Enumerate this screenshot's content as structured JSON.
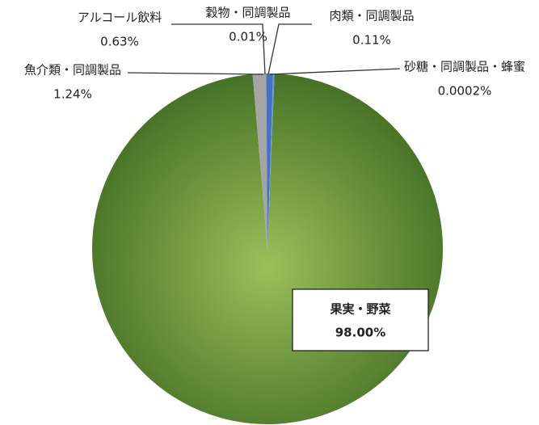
{
  "chart_data": {
    "type": "pie",
    "categories": [
      "果実・野菜",
      "魚介類・同調製品",
      "アルコール飲料",
      "穀物・同調製品",
      "肉類・同調製品",
      "砂糖・同調製品・蜂蜜"
    ],
    "values": [
      98.0,
      1.24,
      0.63,
      0.01,
      0.11,
      0.0002
    ],
    "value_labels": [
      "98.00%",
      "1.24%",
      "0.63%",
      "0.01%",
      "0.11%",
      "0.0002%"
    ],
    "colors": [
      "#6f9a3e",
      "#a5a5a5",
      "#4472c4",
      "#ffc000",
      "#5b9bd5",
      "#70ad47"
    ]
  }
}
